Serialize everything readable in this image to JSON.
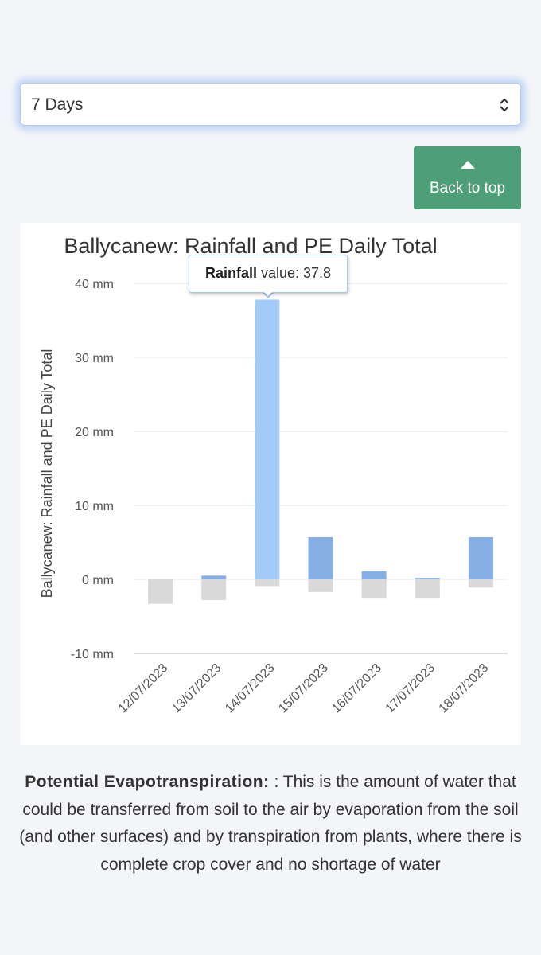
{
  "period_select": {
    "value": "7 Days"
  },
  "back_to_top": {
    "label": "Back to top"
  },
  "tooltip": {
    "series": "Rainfall",
    "text": " value: 37.8"
  },
  "description": {
    "term": "Potential Evapotranspiration:",
    "text": " : This is the amount of water that could be transferred from soil to the air by evaporation from the soil (and other surfaces) and by transpiration from plants, where there is complete crop cover and no shortage of water"
  },
  "colors": {
    "rainfall": "#86b0e5",
    "rainfall_highlight": "#a3cbf8",
    "pe": "#d9d9d9",
    "button": "#4e9e78"
  },
  "chart_data": {
    "type": "bar",
    "title": "Ballycanew: Rainfall and PE Daily Total",
    "ylabel": "Ballycanew: Rainfall and PE Daily Total",
    "xlabel": "",
    "ylim": [
      -10,
      40
    ],
    "yticks": [
      40,
      30,
      20,
      10,
      0,
      -10
    ],
    "ytick_labels": [
      "40 mm",
      "30 mm",
      "20 mm",
      "10 mm",
      "0 mm",
      "-10 mm"
    ],
    "categories": [
      "12/07/2023",
      "13/07/2023",
      "14/07/2023",
      "15/07/2023",
      "16/07/2023",
      "17/07/2023",
      "18/07/2023"
    ],
    "series": [
      {
        "name": "Rainfall",
        "values": [
          0,
          0.5,
          37.8,
          5.7,
          1.1,
          0.2,
          5.7
        ]
      },
      {
        "name": "PE",
        "values": [
          -3.3,
          -2.8,
          -0.9,
          -1.7,
          -2.6,
          -2.6,
          -1.1
        ]
      }
    ],
    "highlighted_category": "14/07/2023",
    "grid": true,
    "legend": "none"
  }
}
